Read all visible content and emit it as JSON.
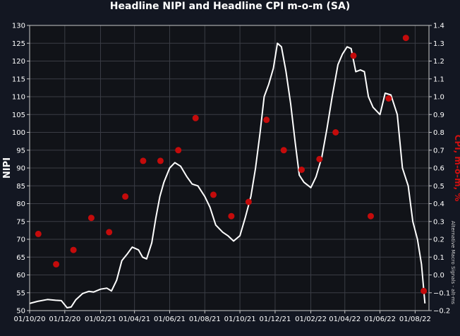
{
  "chart_data": {
    "type": "line",
    "title": "Headline NIPI and Headline CPI m-o-m (SA)",
    "ylabel": "NIPI",
    "y2label": "CPI, m-o-m, %",
    "watermark": "Alternative Macro Signals - alt-ms",
    "ylim": [
      50,
      130
    ],
    "y2lim": [
      -0.2,
      1.4
    ],
    "yticks": [
      50,
      55,
      60,
      65,
      70,
      75,
      80,
      85,
      90,
      95,
      100,
      105,
      110,
      115,
      120,
      125,
      130
    ],
    "y2ticks": [
      "−0.2",
      "−0.1",
      "0.0",
      "0.1",
      "0.2",
      "0.3",
      "0.4",
      "0.5",
      "0.6",
      "0.7",
      "0.8",
      "0.9",
      "1.0",
      "1.1",
      "1.2",
      "1.3",
      "1.4"
    ],
    "xlim": [
      "2020-10-01",
      "2022-08-25"
    ],
    "xticks": [
      {
        "date": "2020-10-01",
        "label": "01/10/20"
      },
      {
        "date": "2020-12-01",
        "label": "01/12/20"
      },
      {
        "date": "2021-02-01",
        "label": "01/02/21"
      },
      {
        "date": "2021-04-01",
        "label": "01/04/21"
      },
      {
        "date": "2021-06-01",
        "label": "01/06/21"
      },
      {
        "date": "2021-08-01",
        "label": "01/08/21"
      },
      {
        "date": "2021-10-01",
        "label": "01/10/21"
      },
      {
        "date": "2021-12-01",
        "label": "01/12/21"
      },
      {
        "date": "2022-02-01",
        "label": "01/02/22"
      },
      {
        "date": "2022-04-01",
        "label": "01/04/22"
      },
      {
        "date": "2022-06-01",
        "label": "01/06/22"
      },
      {
        "date": "2022-08-01",
        "label": "01/08/22"
      }
    ],
    "grid": true,
    "series": [
      {
        "axis": "left",
        "style": "line",
        "color": "#ffffff",
        "points": [
          [
            "2020-10-01",
            52.0
          ],
          [
            "2020-10-15",
            52.6
          ],
          [
            "2020-11-01",
            53.1
          ],
          [
            "2020-11-15",
            52.9
          ],
          [
            "2020-11-25",
            52.8
          ],
          [
            "2020-12-05",
            50.8
          ],
          [
            "2020-12-12",
            51.0
          ],
          [
            "2020-12-20",
            53.0
          ],
          [
            "2021-01-01",
            54.8
          ],
          [
            "2021-01-12",
            55.4
          ],
          [
            "2021-01-20",
            55.2
          ],
          [
            "2021-02-01",
            56.0
          ],
          [
            "2021-02-12",
            56.3
          ],
          [
            "2021-02-20",
            55.5
          ],
          [
            "2021-03-01",
            58.5
          ],
          [
            "2021-03-10",
            64.0
          ],
          [
            "2021-03-20",
            66.0
          ],
          [
            "2021-03-28",
            67.8
          ],
          [
            "2021-04-08",
            67.0
          ],
          [
            "2021-04-15",
            65.0
          ],
          [
            "2021-04-22",
            64.5
          ],
          [
            "2021-05-01",
            69.0
          ],
          [
            "2021-05-08",
            76.0
          ],
          [
            "2021-05-15",
            82.0
          ],
          [
            "2021-05-22",
            86.0
          ],
          [
            "2021-06-01",
            90.0
          ],
          [
            "2021-06-10",
            91.5
          ],
          [
            "2021-06-20",
            90.5
          ],
          [
            "2021-07-01",
            87.5
          ],
          [
            "2021-07-10",
            85.5
          ],
          [
            "2021-07-20",
            85.0
          ],
          [
            "2021-08-01",
            82.0
          ],
          [
            "2021-08-10",
            79.0
          ],
          [
            "2021-08-20",
            74.0
          ],
          [
            "2021-09-01",
            72.0
          ],
          [
            "2021-09-10",
            71.0
          ],
          [
            "2021-09-20",
            69.5
          ],
          [
            "2021-10-01",
            71.0
          ],
          [
            "2021-10-10",
            76.0
          ],
          [
            "2021-10-20",
            82.0
          ],
          [
            "2021-10-28",
            90.0
          ],
          [
            "2021-11-05",
            100.0
          ],
          [
            "2021-11-12",
            110.0
          ],
          [
            "2021-11-20",
            113.5
          ],
          [
            "2021-11-28",
            118.0
          ],
          [
            "2021-12-05",
            125.0
          ],
          [
            "2021-12-12",
            124.0
          ],
          [
            "2021-12-20",
            117.0
          ],
          [
            "2021-12-28",
            108.0
          ],
          [
            "2022-01-05",
            97.0
          ],
          [
            "2022-01-12",
            88.0
          ],
          [
            "2022-01-20",
            86.0
          ],
          [
            "2022-02-01",
            84.5
          ],
          [
            "2022-02-10",
            87.5
          ],
          [
            "2022-02-20",
            93.0
          ],
          [
            "2022-03-01",
            101.0
          ],
          [
            "2022-03-10",
            110.0
          ],
          [
            "2022-03-20",
            119.0
          ],
          [
            "2022-03-28",
            122.0
          ],
          [
            "2022-04-05",
            124.0
          ],
          [
            "2022-04-12",
            123.5
          ],
          [
            "2022-04-20",
            117.0
          ],
          [
            "2022-04-28",
            117.5
          ],
          [
            "2022-05-05",
            117.0
          ],
          [
            "2022-05-12",
            110.0
          ],
          [
            "2022-05-20",
            107.0
          ],
          [
            "2022-06-01",
            105.0
          ],
          [
            "2022-06-10",
            111.0
          ],
          [
            "2022-06-20",
            110.5
          ],
          [
            "2022-07-01",
            105.0
          ],
          [
            "2022-07-10",
            90.0
          ],
          [
            "2022-07-20",
            85.0
          ],
          [
            "2022-07-28",
            75.0
          ],
          [
            "2022-08-05",
            70.0
          ],
          [
            "2022-08-12",
            63.0
          ],
          [
            "2022-08-18",
            52.0
          ]
        ]
      },
      {
        "axis": "right",
        "style": "scatter",
        "color": "#c40b0b",
        "points": [
          [
            "2020-10-16",
            0.23
          ],
          [
            "2020-11-16",
            0.06
          ],
          [
            "2020-12-16",
            0.14
          ],
          [
            "2021-01-16",
            0.32
          ],
          [
            "2021-02-16",
            0.24
          ],
          [
            "2021-03-16",
            0.44
          ],
          [
            "2021-04-16",
            0.64
          ],
          [
            "2021-05-16",
            0.64
          ],
          [
            "2021-06-16",
            0.7
          ],
          [
            "2021-07-16",
            0.88
          ],
          [
            "2021-08-16",
            0.45
          ],
          [
            "2021-09-16",
            0.33
          ],
          [
            "2021-10-16",
            0.41
          ],
          [
            "2021-11-16",
            0.87
          ],
          [
            "2021-12-16",
            0.7
          ],
          [
            "2022-01-16",
            0.59
          ],
          [
            "2022-02-16",
            0.65
          ],
          [
            "2022-03-16",
            0.8
          ],
          [
            "2022-04-16",
            1.23
          ],
          [
            "2022-05-16",
            0.33
          ],
          [
            "2022-06-16",
            0.99
          ],
          [
            "2022-07-16",
            1.33
          ],
          [
            "2022-08-16",
            -0.09
          ]
        ]
      }
    ]
  }
}
